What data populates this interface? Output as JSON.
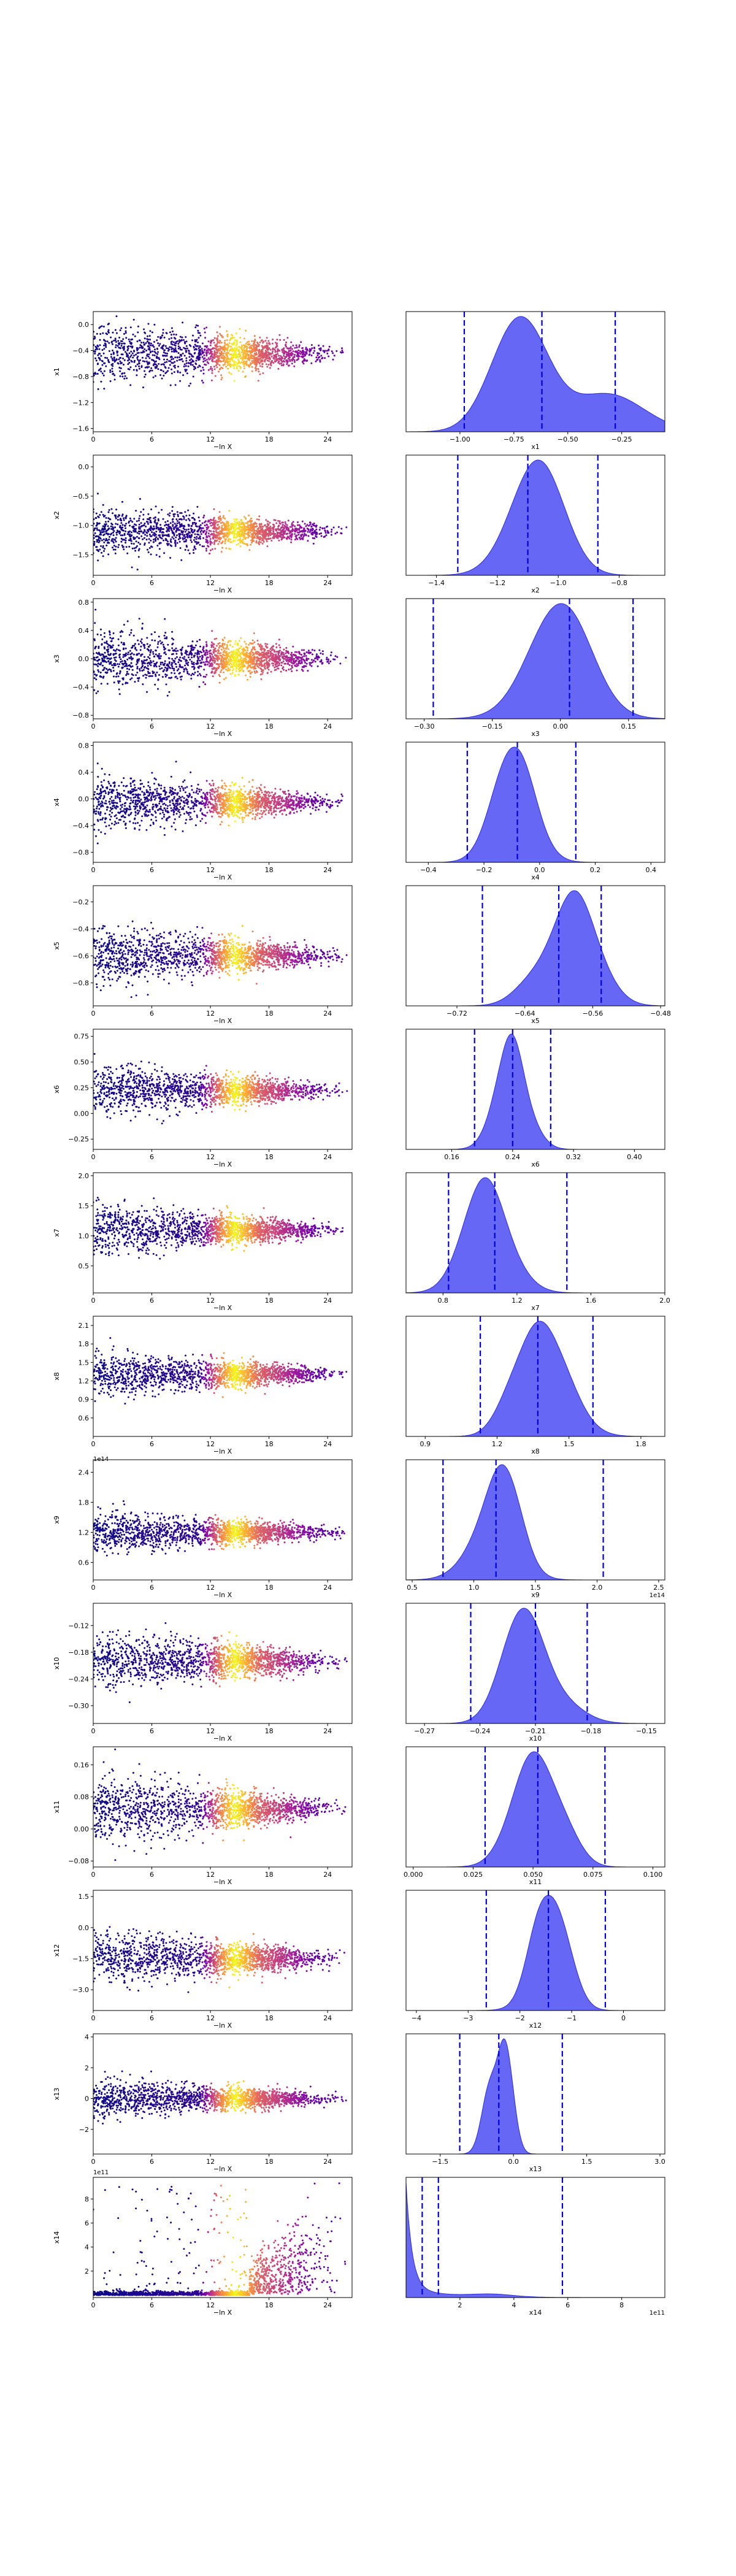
{
  "colors": {
    "scatter_colormap": [
      "#0d0887",
      "#3a049a",
      "#6a00a8",
      "#9c179e",
      "#c5407e",
      "#e16462",
      "#f2844b",
      "#fca636",
      "#fcce25",
      "#f0f921"
    ],
    "density_fill": "#5a5af5",
    "density_edge": "#2b2bd9",
    "quantile_line": "#0000dd"
  },
  "chart_data": [
    {
      "id": "p1",
      "type": "scatter",
      "xlabel": "−ln X",
      "ylabel": "x1",
      "x_range": [
        0,
        26.5
      ],
      "y_range": [
        -1.65,
        0.2
      ],
      "y_ticks": [
        0.0,
        -0.4,
        -0.8,
        -1.2,
        -1.6
      ],
      "y_tick_labels": [
        "0.0",
        "−0.4",
        "−0.8",
        "−1.2",
        "−1.6"
      ],
      "x_ticks": [
        0,
        6,
        12,
        18,
        24
      ],
      "center": -0.45,
      "spread": 0.55
    },
    {
      "id": "d1",
      "type": "area",
      "xlabel": "x1",
      "x_range": [
        -1.25,
        -0.05
      ],
      "x_ticks": [
        -1.0,
        -0.75,
        -0.5,
        -0.25
      ],
      "x_tick_labels": [
        "−1.00",
        "−0.75",
        "−0.50",
        "−0.25"
      ],
      "mean": -0.62,
      "sd": 0.2,
      "quantiles": [
        -0.98,
        -0.62,
        -0.28
      ]
    },
    {
      "id": "p2",
      "type": "scatter",
      "xlabel": "−ln X",
      "ylabel": "x2",
      "x_range": [
        0,
        26.5
      ],
      "y_range": [
        -1.85,
        0.2
      ],
      "y_ticks": [
        0.0,
        -0.5,
        -1.0,
        -1.5
      ],
      "y_tick_labels": [
        "0.0",
        "−0.5",
        "−1.0",
        "−1.5"
      ],
      "x_ticks": [
        0,
        6,
        12,
        18,
        24
      ],
      "center": -1.1,
      "spread": 0.5
    },
    {
      "id": "d2",
      "type": "area",
      "xlabel": "x2",
      "x_range": [
        -1.5,
        -0.65
      ],
      "x_ticks": [
        -1.4,
        -1.2,
        -1.0,
        -0.8
      ],
      "x_tick_labels": [
        "−1.4",
        "−1.2",
        "−1.0",
        "−0.8"
      ],
      "mean": -1.1,
      "sd": 0.12,
      "quantiles": [
        -1.33,
        -1.1,
        -0.87
      ]
    },
    {
      "id": "p3",
      "type": "scatter",
      "xlabel": "−ln X",
      "ylabel": "x3",
      "x_range": [
        0,
        26.5
      ],
      "y_range": [
        -0.85,
        0.85
      ],
      "y_ticks": [
        0.8,
        0.4,
        0.0,
        -0.4,
        -0.8
      ],
      "y_tick_labels": [
        "0.8",
        "0.4",
        "0.0",
        "−0.4",
        "−0.8"
      ],
      "x_ticks": [
        0,
        6,
        12,
        18,
        24
      ],
      "center": 0.0,
      "spread": 0.5
    },
    {
      "id": "d3",
      "type": "area",
      "xlabel": "x3",
      "x_range": [
        -0.34,
        0.23
      ],
      "x_ticks": [
        -0.3,
        -0.15,
        0.0,
        0.15
      ],
      "x_tick_labels": [
        "−0.30",
        "−0.15",
        "0.00",
        "0.15"
      ],
      "mean": 0.02,
      "sd": 0.09,
      "quantiles": [
        -0.28,
        0.02,
        0.16
      ]
    },
    {
      "id": "p4",
      "type": "scatter",
      "xlabel": "−ln X",
      "ylabel": "x4",
      "x_range": [
        0,
        26.5
      ],
      "y_range": [
        -0.95,
        0.85
      ],
      "y_ticks": [
        0.8,
        0.4,
        0.0,
        -0.4,
        -0.8
      ],
      "y_tick_labels": [
        "0.8",
        "0.4",
        "0.0",
        "−0.4",
        "−0.8"
      ],
      "x_ticks": [
        0,
        6,
        12,
        18,
        24
      ],
      "center": -0.05,
      "spread": 0.5
    },
    {
      "id": "d4",
      "type": "area",
      "xlabel": "x4",
      "x_range": [
        -0.48,
        0.45
      ],
      "x_ticks": [
        -0.4,
        -0.2,
        0.0,
        0.2,
        0.4
      ],
      "x_tick_labels": [
        "−0.4",
        "−0.2",
        "0.0",
        "0.2",
        "0.4"
      ],
      "mean": -0.08,
      "sd": 0.1,
      "quantiles": [
        -0.26,
        -0.08,
        0.13
      ]
    },
    {
      "id": "p5",
      "type": "scatter",
      "xlabel": "−ln X",
      "ylabel": "x5",
      "x_range": [
        0,
        26.5
      ],
      "y_range": [
        -0.97,
        -0.08
      ],
      "y_ticks": [
        -0.2,
        -0.4,
        -0.6,
        -0.8
      ],
      "y_tick_labels": [
        "−0.2",
        "−0.4",
        "−0.6",
        "−0.8"
      ],
      "x_ticks": [
        0,
        6,
        12,
        18,
        24
      ],
      "center": -0.6,
      "spread": 0.25
    },
    {
      "id": "d5",
      "type": "area",
      "xlabel": "x5",
      "x_range": [
        -0.78,
        -0.475
      ],
      "x_ticks": [
        -0.72,
        -0.64,
        -0.56,
        -0.48
      ],
      "x_tick_labels": [
        "−0.72",
        "−0.64",
        "−0.56",
        "−0.48"
      ],
      "mean": -0.59,
      "sd": 0.03,
      "quantiles": [
        -0.69,
        -0.6,
        -0.55
      ]
    },
    {
      "id": "p6",
      "type": "scatter",
      "xlabel": "−ln X",
      "ylabel": "x6",
      "x_range": [
        0,
        26.5
      ],
      "y_range": [
        -0.35,
        0.82
      ],
      "y_ticks": [
        0.75,
        0.5,
        0.25,
        0.0,
        -0.25
      ],
      "y_tick_labels": [
        "0.75",
        "0.50",
        "0.25",
        "0.00",
        "−0.25"
      ],
      "x_ticks": [
        0,
        6,
        12,
        18,
        24
      ],
      "center": 0.22,
      "spread": 0.3
    },
    {
      "id": "d6",
      "type": "area",
      "xlabel": "x6",
      "x_range": [
        0.1,
        0.44
      ],
      "x_ticks": [
        0.16,
        0.24,
        0.32,
        0.4
      ],
      "x_tick_labels": [
        "0.16",
        "0.24",
        "0.32",
        "0.40"
      ],
      "mean": 0.24,
      "sd": 0.025,
      "quantiles": [
        0.19,
        0.24,
        0.29
      ]
    },
    {
      "id": "p7",
      "type": "scatter",
      "xlabel": "−ln X",
      "ylabel": "x7",
      "x_range": [
        0,
        26.5
      ],
      "y_range": [
        0.05,
        2.05
      ],
      "y_ticks": [
        2.0,
        1.5,
        1.0,
        0.5
      ],
      "y_tick_labels": [
        "2.0",
        "1.5",
        "1.0",
        "0.5"
      ],
      "x_ticks": [
        0,
        6,
        12,
        18,
        24
      ],
      "center": 1.1,
      "spread": 0.5
    },
    {
      "id": "d7",
      "type": "area",
      "xlabel": "x7",
      "x_range": [
        0.6,
        2.0
      ],
      "x_ticks": [
        0.8,
        1.2,
        1.6,
        2.0
      ],
      "x_tick_labels": [
        "0.8",
        "1.2",
        "1.6",
        "2.0"
      ],
      "mean": 1.08,
      "sd": 0.17,
      "quantiles": [
        0.83,
        1.08,
        1.47
      ]
    },
    {
      "id": "p8",
      "type": "scatter",
      "xlabel": "−ln X",
      "ylabel": "x8",
      "x_range": [
        0,
        26.5
      ],
      "y_range": [
        0.3,
        2.25
      ],
      "y_ticks": [
        2.1,
        1.8,
        1.5,
        1.2,
        0.9,
        0.6
      ],
      "y_tick_labels": [
        "2.1",
        "1.8",
        "1.5",
        "1.2",
        "0.9",
        "0.6"
      ],
      "x_ticks": [
        0,
        6,
        12,
        18,
        24
      ],
      "x_tick_labels_offset": "1e14",
      "center": 1.3,
      "spread": 0.45
    },
    {
      "id": "d8",
      "type": "area",
      "xlabel": "x8",
      "x_range": [
        0.82,
        1.9
      ],
      "x_ticks": [
        0.9,
        1.2,
        1.5,
        1.8
      ],
      "x_tick_labels": [
        "0.9",
        "1.2",
        "1.5",
        "1.8"
      ],
      "mean": 1.37,
      "sd": 0.12,
      "quantiles": [
        1.13,
        1.37,
        1.6
      ]
    },
    {
      "id": "p9",
      "type": "scatter",
      "xlabel": "−ln X",
      "ylabel": "x9",
      "x_range": [
        0,
        26.5
      ],
      "y_range": [
        0.25,
        2.65
      ],
      "y_ticks": [
        2.4,
        1.8,
        1.2,
        0.6
      ],
      "y_tick_labels": [
        "2.4",
        "1.8",
        "1.2",
        "0.6"
      ],
      "x_ticks": [
        0,
        6,
        12,
        18,
        24
      ],
      "center": 1.2,
      "spread": 0.5
    },
    {
      "id": "d9",
      "type": "area",
      "xlabel": "x9",
      "x_range": [
        0.45,
        2.55
      ],
      "x_ticks": [
        0.5,
        1.0,
        1.5,
        2.0,
        2.5
      ],
      "x_tick_labels": [
        "0.5",
        "1.0",
        "1.5",
        "2.0",
        "2.5"
      ],
      "x_offset": "1e14",
      "mean": 1.18,
      "sd": 0.22,
      "quantiles": [
        0.75,
        1.18,
        2.05
      ]
    },
    {
      "id": "p10",
      "type": "scatter",
      "xlabel": "−ln X",
      "ylabel": "x10",
      "x_range": [
        0,
        26.5
      ],
      "y_range": [
        -0.34,
        -0.07
      ],
      "y_ticks": [
        -0.12,
        -0.18,
        -0.24,
        -0.3
      ],
      "y_tick_labels": [
        "−0.12",
        "−0.18",
        "−0.24",
        "−0.30"
      ],
      "x_ticks": [
        0,
        6,
        12,
        18,
        24
      ],
      "center": -0.2,
      "spread": 0.08
    },
    {
      "id": "d10",
      "type": "area",
      "xlabel": "x10",
      "x_range": [
        -0.28,
        -0.14
      ],
      "x_ticks": [
        -0.27,
        -0.24,
        -0.21,
        -0.18,
        -0.15
      ],
      "x_tick_labels": [
        "−0.27",
        "−0.24",
        "−0.21",
        "−0.18",
        "−0.15"
      ],
      "mean": -0.208,
      "sd": 0.018,
      "quantiles": [
        -0.245,
        -0.21,
        -0.182
      ]
    },
    {
      "id": "p11",
      "type": "scatter",
      "xlabel": "−ln X",
      "ylabel": "x11",
      "x_range": [
        0,
        26.5
      ],
      "y_range": [
        -0.095,
        0.205
      ],
      "y_ticks": [
        0.16,
        0.08,
        0.0,
        -0.08
      ],
      "y_tick_labels": [
        "0.16",
        "0.08",
        "0.00",
        "−0.08"
      ],
      "x_ticks": [
        0,
        6,
        12,
        18,
        24
      ],
      "center": 0.05,
      "spread": 0.1
    },
    {
      "id": "d11",
      "type": "area",
      "xlabel": "x11",
      "x_range": [
        -0.003,
        0.105
      ],
      "x_ticks": [
        0.0,
        0.025,
        0.05,
        0.075,
        0.1
      ],
      "x_tick_labels": [
        "0.000",
        "0.025",
        "0.050",
        "0.075",
        "0.100"
      ],
      "mean": 0.052,
      "sd": 0.011,
      "quantiles": [
        0.03,
        0.052,
        0.08
      ]
    },
    {
      "id": "p12",
      "type": "scatter",
      "xlabel": "−ln X",
      "ylabel": "x12",
      "x_range": [
        0,
        26.5
      ],
      "y_range": [
        -4.0,
        1.8
      ],
      "y_ticks": [
        1.5,
        0.0,
        -1.5,
        -3.0
      ],
      "y_tick_labels": [
        "1.5",
        "0.0",
        "−1.5",
        "−3.0"
      ],
      "x_ticks": [
        0,
        6,
        12,
        18,
        24
      ],
      "center": -1.5,
      "spread": 1.6
    },
    {
      "id": "d12",
      "type": "area",
      "xlabel": "x12",
      "x_range": [
        -4.2,
        0.8
      ],
      "x_ticks": [
        -4,
        -3,
        -2,
        -1,
        0
      ],
      "x_tick_labels": [
        "−4",
        "−3",
        "−2",
        "−1",
        "0"
      ],
      "mean": -1.45,
      "sd": 0.45,
      "quantiles": [
        -2.65,
        -1.45,
        -0.35
      ]
    },
    {
      "id": "p13",
      "type": "scatter",
      "xlabel": "−ln X",
      "ylabel": "x13",
      "x_range": [
        0,
        26.5
      ],
      "y_range": [
        -3.6,
        4.2
      ],
      "y_ticks": [
        4,
        2,
        0,
        -2
      ],
      "y_tick_labels": [
        "4",
        "2",
        "0",
        "−2"
      ],
      "x_ticks": [
        0,
        6,
        12,
        18,
        24
      ],
      "center": 0.0,
      "spread": 1.5
    },
    {
      "id": "d13",
      "type": "area",
      "xlabel": "x13",
      "x_range": [
        -2.2,
        3.1
      ],
      "x_ticks": [
        -1.5,
        0.0,
        1.5,
        3.0
      ],
      "x_tick_labels": [
        "−1.5",
        "0.0",
        "1.5",
        "3.0"
      ],
      "mean": -0.3,
      "sd": 0.28,
      "quantiles": [
        -1.1,
        -0.3,
        1.0
      ]
    },
    {
      "id": "p14",
      "type": "scatter",
      "xlabel": "−ln X",
      "ylabel": "x14",
      "x_range": [
        0,
        26.5
      ],
      "y_range": [
        -0.2,
        9.8
      ],
      "y_ticks": [
        8,
        6,
        4,
        2
      ],
      "y_tick_labels": [
        "8",
        "6",
        "4",
        "2"
      ],
      "x_ticks": [
        0,
        6,
        12,
        18,
        24
      ],
      "y_offset": "1e11",
      "center": 1.0,
      "spread": 2.0
    },
    {
      "id": "d14",
      "type": "area",
      "xlabel": "x14",
      "x_range": [
        0.0,
        9.6
      ],
      "x_ticks": [
        2,
        4,
        6,
        8
      ],
      "x_tick_labels": [
        "2",
        "4",
        "6",
        "8"
      ],
      "x_offset": "1e11",
      "mean": 0.0,
      "sd": 0.35,
      "quantiles": [
        0.6,
        1.2,
        5.8
      ]
    }
  ]
}
